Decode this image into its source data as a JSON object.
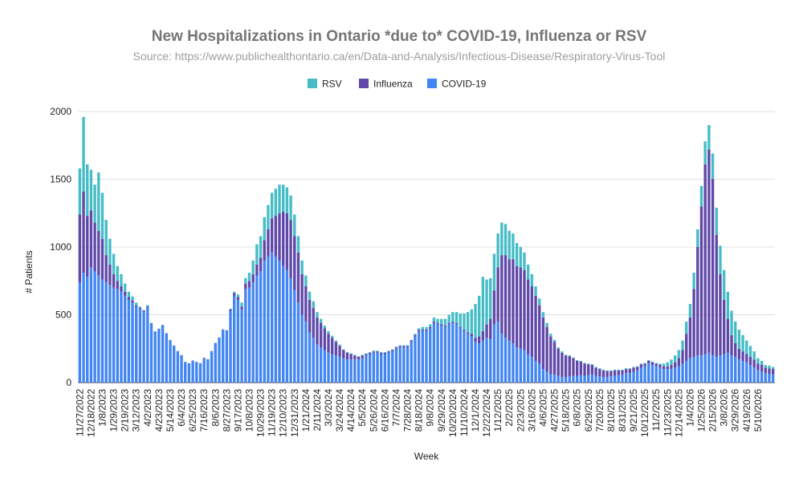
{
  "chart_data": {
    "type": "bar",
    "stacked": true,
    "title": "New Hospitalizations in Ontario *due to* COVID-19, Influenza or RSV",
    "subtitle": "Source: https://www.publichealthontario.ca/en/Data-and-Analysis/Infectious-Disease/Respiratory-Virus-Tool",
    "xlabel": "Week",
    "ylabel": "# Patients",
    "ylim": [
      0,
      2000
    ],
    "yticks": [
      0,
      500,
      1000,
      1500,
      2000
    ],
    "grid": true,
    "legend_position": "top-center",
    "start_week": "11/27/2022",
    "x_tick_labels": [
      "11/27/2022",
      "12/18/2022",
      "1/8/2023",
      "1/29/2023",
      "2/19/2023",
      "3/12/2023",
      "4/2/2023",
      "4/23/2023",
      "5/14/2023",
      "6/4/2023",
      "6/25/2023",
      "7/16/2023",
      "8/6/2023",
      "8/27/2023",
      "9/17/2023",
      "10/8/2023",
      "10/29/2023",
      "11/19/2023",
      "12/10/2023",
      "12/31/2023",
      "1/21/2024",
      "2/11/2024",
      "3/3/2024",
      "3/24/2024",
      "4/14/2024",
      "5/5/2024",
      "5/26/2024",
      "6/16/2024",
      "7/7/2024",
      "7/28/2024",
      "8/18/2024",
      "9/8/2024",
      "9/29/2024",
      "10/20/2024",
      "11/10/2024",
      "12/1/2024",
      "12/22/2024",
      "1/12/2025",
      "2/2/2025",
      "2/23/2025",
      "3/16/2025",
      "4/6/2025",
      "4/27/2025",
      "5/18/2025",
      "6/8/2025",
      "6/29/2025",
      "7/20/2025",
      "8/10/2025",
      "8/31/2025",
      "9/21/2025",
      "10/12/2025",
      "11/2/2025",
      "11/23/2025",
      "12/14/2025",
      "1/4/2026",
      "1/25/2026",
      "2/15/2026",
      "3/8/2026",
      "3/29/2026",
      "4/19/2026",
      "5/10/2026"
    ],
    "series": [
      {
        "name": "COVID-19",
        "color": "#4285f4",
        "values": [
          740,
          810,
          780,
          850,
          820,
          790,
          760,
          740,
          720,
          700,
          690,
          670,
          640,
          610,
          590,
          560,
          540,
          520,
          560,
          430,
          370,
          390,
          420,
          360,
          310,
          270,
          230,
          200,
          150,
          140,
          160,
          150,
          140,
          180,
          170,
          230,
          290,
          330,
          390,
          380,
          530,
          640,
          610,
          540,
          690,
          700,
          740,
          790,
          820,
          900,
          930,
          960,
          930,
          900,
          860,
          830,
          770,
          680,
          590,
          500,
          450,
          370,
          330,
          280,
          260,
          240,
          220,
          210,
          200,
          190,
          180,
          170,
          170,
          170,
          170,
          180,
          200,
          210,
          220,
          220,
          210,
          210,
          220,
          230,
          250,
          260,
          260,
          260,
          300,
          340,
          380,
          380,
          380,
          400,
          440,
          430,
          420,
          410,
          430,
          440,
          430,
          400,
          380,
          360,
          340,
          300,
          290,
          310,
          330,
          320,
          430,
          450,
          360,
          330,
          310,
          290,
          260,
          250,
          240,
          210,
          190,
          160,
          140,
          100,
          80,
          60,
          60,
          50,
          40,
          40,
          45,
          50,
          50,
          55,
          50,
          55,
          60,
          50,
          45,
          40,
          40,
          45,
          50,
          55,
          60,
          70,
          70,
          80,
          90,
          110,
          120,
          140,
          130,
          120,
          110,
          100,
          100,
          100,
          110,
          120,
          140,
          160,
          180,
          190,
          200,
          200,
          210,
          220,
          200,
          190,
          200,
          210,
          220,
          200,
          190,
          170,
          160,
          150,
          130,
          110,
          90,
          80,
          70,
          65,
          60
        ]
      },
      {
        "name": "Influenza",
        "color": "#6048a8",
        "values": [
          500,
          600,
          450,
          420,
          360,
          330,
          300,
          200,
          150,
          100,
          60,
          40,
          30,
          20,
          15,
          10,
          10,
          10,
          5,
          5,
          5,
          5,
          3,
          3,
          3,
          2,
          2,
          2,
          2,
          2,
          2,
          2,
          2,
          2,
          2,
          2,
          2,
          2,
          2,
          5,
          10,
          20,
          20,
          20,
          40,
          50,
          60,
          80,
          100,
          150,
          200,
          250,
          300,
          350,
          400,
          420,
          430,
          400,
          370,
          300,
          260,
          240,
          220,
          200,
          180,
          160,
          140,
          120,
          100,
          80,
          60,
          50,
          40,
          30,
          20,
          20,
          10,
          10,
          10,
          10,
          10,
          10,
          10,
          10,
          10,
          10,
          10,
          10,
          10,
          10,
          10,
          10,
          10,
          10,
          10,
          10,
          10,
          10,
          10,
          10,
          10,
          10,
          10,
          10,
          20,
          30,
          50,
          70,
          100,
          150,
          250,
          400,
          580,
          610,
          600,
          620,
          600,
          600,
          590,
          550,
          520,
          480,
          430,
          380,
          330,
          280,
          240,
          200,
          180,
          160,
          150,
          130,
          110,
          100,
          90,
          80,
          70,
          60,
          55,
          50,
          45,
          40,
          40,
          35,
          30,
          30,
          30,
          30,
          25,
          25,
          20,
          20,
          20,
          20,
          20,
          20,
          20,
          30,
          40,
          60,
          100,
          200,
          300,
          500,
          800,
          1100,
          1400,
          1500,
          1300,
          900,
          600,
          400,
          250,
          150,
          100,
          80,
          70,
          60,
          60,
          60,
          50,
          50,
          40,
          40,
          40,
          35,
          35,
          30,
          30,
          30,
          25
        ]
      },
      {
        "name": "RSV",
        "color": "#46bdc6",
        "values": [
          340,
          550,
          380,
          300,
          280,
          430,
          340,
          260,
          190,
          150,
          110,
          90,
          60,
          40,
          30,
          20,
          10,
          5,
          5,
          5,
          3,
          3,
          2,
          2,
          2,
          2,
          1,
          1,
          1,
          1,
          1,
          1,
          1,
          1,
          1,
          1,
          1,
          1,
          1,
          1,
          5,
          10,
          20,
          30,
          40,
          60,
          100,
          150,
          160,
          170,
          180,
          190,
          200,
          210,
          200,
          190,
          180,
          160,
          120,
          100,
          80,
          60,
          50,
          40,
          30,
          20,
          20,
          15,
          10,
          10,
          5,
          5,
          5,
          5,
          5,
          5,
          5,
          5,
          5,
          5,
          5,
          5,
          5,
          5,
          5,
          5,
          5,
          5,
          5,
          10,
          10,
          20,
          20,
          20,
          30,
          30,
          40,
          50,
          60,
          70,
          80,
          100,
          120,
          150,
          180,
          250,
          300,
          400,
          330,
          300,
          270,
          250,
          240,
          230,
          210,
          190,
          170,
          150,
          130,
          110,
          90,
          70,
          50,
          40,
          30,
          20,
          15,
          10,
          10,
          5,
          5,
          5,
          5,
          5,
          5,
          5,
          5,
          5,
          5,
          5,
          5,
          5,
          5,
          5,
          5,
          5,
          5,
          5,
          5,
          5,
          5,
          5,
          5,
          5,
          10,
          20,
          30,
          40,
          50,
          60,
          70,
          90,
          100,
          120,
          130,
          150,
          170,
          180,
          190,
          200,
          210,
          220,
          200,
          180,
          160,
          140,
          120,
          100,
          80,
          60,
          40,
          30,
          20,
          20,
          15,
          10
        ]
      }
    ]
  }
}
